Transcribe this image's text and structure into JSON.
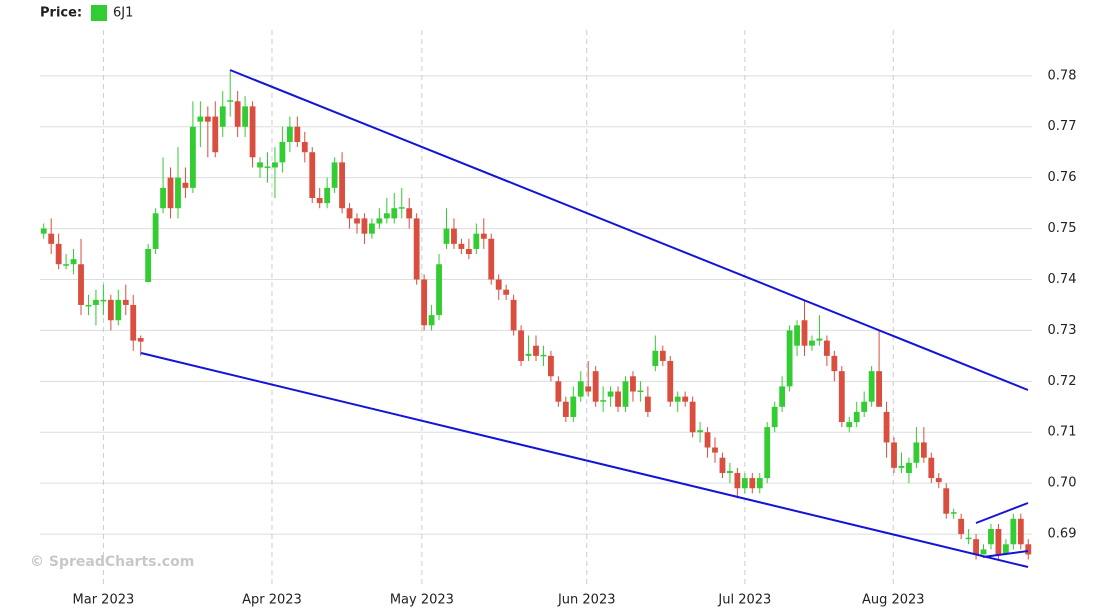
{
  "chart_data": {
    "type": "candlestick",
    "price_label": "Price:",
    "watermark": "© SpreadCharts.com",
    "up_color": "#33cc33",
    "down_color": "#d94e3f",
    "series": [
      {
        "name": "6J1",
        "color": "#33cc33",
        "open": [
          0.749,
          0.749,
          0.747,
          0.743,
          0.743,
          0.743,
          0.735,
          0.735,
          0.736,
          0.736,
          0.732,
          0.736,
          0.735,
          0.7285,
          0.7395,
          0.746,
          0.754,
          0.76,
          0.754,
          0.759,
          0.758,
          0.771,
          0.772,
          0.772,
          0.77,
          0.775,
          0.775,
          0.77,
          0.774,
          0.762,
          0.762,
          0.762,
          0.763,
          0.767,
          0.77,
          0.767,
          0.765,
          0.756,
          0.755,
          0.758,
          0.763,
          0.754,
          0.752,
          0.752,
          0.749,
          0.751,
          0.752,
          0.752,
          0.754,
          0.754,
          0.752,
          0.74,
          0.731,
          0.733,
          0.747,
          0.75,
          0.747,
          0.746,
          0.746,
          0.749,
          0.748,
          0.74,
          0.738,
          0.736,
          0.73,
          0.725,
          0.727,
          0.725,
          0.725,
          0.72,
          0.716,
          0.713,
          0.717,
          0.719,
          0.722,
          0.716,
          0.717,
          0.718,
          0.715,
          0.721,
          0.718,
          0.717,
          0.723,
          0.726,
          0.724,
          0.716,
          0.717,
          0.716,
          0.71,
          0.71,
          0.707,
          0.705,
          0.702,
          0.702,
          0.699,
          0.701,
          0.699,
          0.701,
          0.711,
          0.715,
          0.719,
          0.727,
          0.732,
          0.727,
          0.728,
          0.728,
          0.725,
          0.722,
          0.711,
          0.712,
          0.714,
          0.716,
          0.722,
          0.714,
          0.708,
          0.703,
          0.702,
          0.704,
          0.708,
          0.705,
          0.701,
          0.699,
          0.694,
          0.693,
          0.689,
          0.689,
          0.686,
          0.688,
          0.691,
          0.686,
          0.688,
          0.693,
          0.688
        ],
        "high": [
          0.751,
          0.752,
          0.749,
          0.745,
          0.746,
          0.748,
          0.737,
          0.738,
          0.739,
          0.737,
          0.738,
          0.739,
          0.737,
          0.729,
          0.747,
          0.754,
          0.764,
          0.762,
          0.766,
          0.762,
          0.775,
          0.775,
          0.774,
          0.775,
          0.777,
          0.781,
          0.777,
          0.776,
          0.775,
          0.764,
          0.765,
          0.766,
          0.77,
          0.772,
          0.772,
          0.769,
          0.766,
          0.758,
          0.76,
          0.764,
          0.765,
          0.755,
          0.753,
          0.753,
          0.752,
          0.754,
          0.756,
          0.757,
          0.758,
          0.756,
          0.753,
          0.741,
          0.735,
          0.745,
          0.754,
          0.752,
          0.748,
          0.748,
          0.751,
          0.752,
          0.749,
          0.741,
          0.739,
          0.737,
          0.731,
          0.729,
          0.729,
          0.727,
          0.726,
          0.721,
          0.717,
          0.719,
          0.722,
          0.724,
          0.723,
          0.719,
          0.719,
          0.719,
          0.721,
          0.722,
          0.72,
          0.719,
          0.729,
          0.727,
          0.725,
          0.718,
          0.718,
          0.717,
          0.712,
          0.711,
          0.709,
          0.706,
          0.704,
          0.703,
          0.702,
          0.702,
          0.702,
          0.712,
          0.716,
          0.721,
          0.731,
          0.732,
          0.736,
          0.729,
          0.733,
          0.729,
          0.726,
          0.723,
          0.713,
          0.716,
          0.718,
          0.723,
          0.73,
          0.716,
          0.709,
          0.706,
          0.705,
          0.711,
          0.711,
          0.706,
          0.702,
          0.7,
          0.695,
          0.694,
          0.691,
          0.69,
          0.688,
          0.692,
          0.692,
          0.689,
          0.694,
          0.694,
          0.689
        ],
        "low": [
          0.748,
          0.745,
          0.742,
          0.742,
          0.741,
          0.733,
          0.733,
          0.731,
          0.733,
          0.73,
          0.731,
          0.733,
          0.726,
          0.725,
          0.7395,
          0.745,
          0.753,
          0.752,
          0.752,
          0.756,
          0.757,
          0.766,
          0.764,
          0.764,
          0.768,
          0.772,
          0.768,
          0.768,
          0.762,
          0.76,
          0.759,
          0.756,
          0.761,
          0.765,
          0.766,
          0.763,
          0.755,
          0.754,
          0.754,
          0.757,
          0.753,
          0.75,
          0.749,
          0.747,
          0.748,
          0.75,
          0.751,
          0.751,
          0.752,
          0.75,
          0.739,
          0.73,
          0.73,
          0.732,
          0.746,
          0.746,
          0.745,
          0.744,
          0.745,
          0.746,
          0.739,
          0.736,
          0.736,
          0.729,
          0.723,
          0.724,
          0.724,
          0.723,
          0.72,
          0.715,
          0.712,
          0.712,
          0.716,
          0.717,
          0.715,
          0.714,
          0.715,
          0.714,
          0.714,
          0.716,
          0.716,
          0.713,
          0.722,
          0.723,
          0.715,
          0.714,
          0.715,
          0.709,
          0.708,
          0.705,
          0.704,
          0.701,
          0.7,
          0.697,
          0.698,
          0.698,
          0.698,
          0.7,
          0.71,
          0.714,
          0.718,
          0.725,
          0.725,
          0.726,
          0.727,
          0.723,
          0.72,
          0.711,
          0.71,
          0.711,
          0.713,
          0.715,
          0.715,
          0.705,
          0.702,
          0.702,
          0.7,
          0.703,
          0.704,
          0.7,
          0.699,
          0.693,
          0.693,
          0.689,
          0.688,
          0.685,
          0.686,
          0.687,
          0.685,
          0.686,
          0.687,
          0.687,
          0.685
        ],
        "close": [
          0.75,
          0.747,
          0.743,
          0.743,
          0.744,
          0.735,
          0.735,
          0.736,
          0.736,
          0.732,
          0.736,
          0.735,
          0.728,
          0.7278,
          0.746,
          0.753,
          0.758,
          0.754,
          0.76,
          0.758,
          0.77,
          0.772,
          0.771,
          0.765,
          0.774,
          0.7752,
          0.77,
          0.774,
          0.764,
          0.763,
          0.7622,
          0.763,
          0.767,
          0.77,
          0.767,
          0.765,
          0.756,
          0.755,
          0.758,
          0.763,
          0.754,
          0.752,
          0.751,
          0.749,
          0.751,
          0.752,
          0.753,
          0.754,
          0.7542,
          0.752,
          0.74,
          0.731,
          0.733,
          0.743,
          0.75,
          0.747,
          0.746,
          0.745,
          0.749,
          0.748,
          0.74,
          0.738,
          0.737,
          0.73,
          0.724,
          0.7254,
          0.725,
          0.7252,
          0.721,
          0.716,
          0.713,
          0.717,
          0.72,
          0.718,
          0.716,
          0.7163,
          0.718,
          0.715,
          0.72,
          0.718,
          0.7182,
          0.714,
          0.726,
          0.724,
          0.716,
          0.717,
          0.716,
          0.71,
          0.7104,
          0.707,
          0.706,
          0.702,
          0.7024,
          0.699,
          0.701,
          0.699,
          0.701,
          0.711,
          0.715,
          0.719,
          0.73,
          0.731,
          0.727,
          0.728,
          0.7284,
          0.725,
          0.722,
          0.712,
          0.712,
          0.714,
          0.716,
          0.722,
          0.715,
          0.708,
          0.703,
          0.7034,
          0.704,
          0.708,
          0.705,
          0.701,
          0.7002,
          0.694,
          0.6943,
          0.69,
          0.6893,
          0.686,
          0.687,
          0.691,
          0.686,
          0.688,
          0.693,
          0.688,
          0.686
        ]
      }
    ],
    "xlim": [
      -0.5,
      132.5
    ],
    "xticks": [
      {
        "value": 8,
        "label": "Mar 2023"
      },
      {
        "value": 30.6,
        "label": "Apr 2023"
      },
      {
        "value": 50.7,
        "label": "May 2023"
      },
      {
        "value": 72.8,
        "label": "Jun 2023"
      },
      {
        "value": 94,
        "label": "Jul 2023"
      },
      {
        "value": 113.9,
        "label": "Aug 2023"
      }
    ],
    "ylim": [
      0.68,
      0.789
    ],
    "yticks": [
      0.69,
      {
        "value": 0.7,
        "label": "0.70"
      },
      0.71,
      0.72,
      0.73,
      0.74,
      0.75,
      0.76,
      0.77,
      0.78
    ],
    "grid": true
  }
}
